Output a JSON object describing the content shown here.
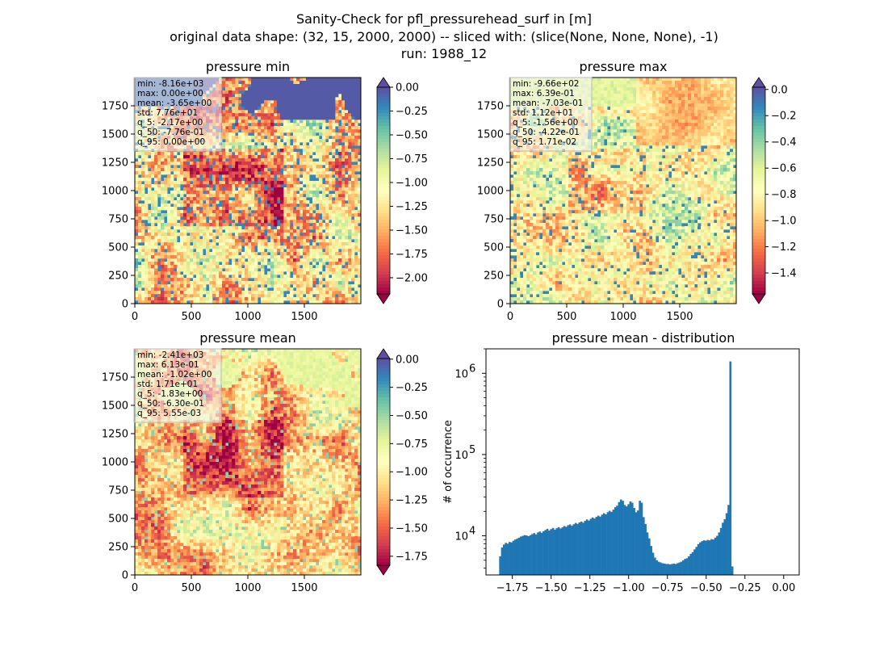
{
  "figure": {
    "title_lines": [
      "Sanity-Check for pfl_pressurehead_surf in [m]",
      "original data shape: (32, 15, 2000, 2000) -- sliced with: (slice(None, None, None), -1)",
      "run: 1988_12"
    ]
  },
  "chart_data": [
    {
      "type": "heatmap",
      "title": "pressure min",
      "xlim": [
        0,
        2000
      ],
      "ylim": [
        0,
        2000
      ],
      "xticks": [
        0,
        500,
        1000,
        1500
      ],
      "yticks": [
        0,
        250,
        500,
        750,
        1000,
        1250,
        1500,
        1750
      ],
      "colormap": "Spectral",
      "colorbar": {
        "range": [
          -2.17,
          0.0
        ],
        "ticks": [
          0.0,
          -0.25,
          -0.5,
          -0.75,
          -1.0,
          -1.25,
          -1.5,
          -1.75,
          -2.0
        ],
        "tick_labels": [
          "0.00",
          "−0.25",
          "−0.50",
          "−0.75",
          "−1.00",
          "−1.25",
          "−1.50",
          "−1.75",
          "−2.00"
        ],
        "extend": "both",
        "extend_top_color": "#5e4fa2",
        "extend_bottom_color": "#9e0142"
      },
      "stats": [
        "min: -8.16e+03",
        "max: 0.00e+00",
        "mean: -3.65e+00",
        "std: 7.76e+01",
        "q_5: -2.17e+00",
        "q_50: -7.76e-01",
        "q_95: 0.00e+00"
      ]
    },
    {
      "type": "heatmap",
      "title": "pressure max",
      "xlim": [
        0,
        2000
      ],
      "ylim": [
        0,
        2000
      ],
      "xticks": [
        0,
        500,
        1000,
        1500
      ],
      "yticks": [
        0,
        250,
        500,
        750,
        1000,
        1250,
        1500,
        1750
      ],
      "colormap": "Spectral",
      "colorbar": {
        "range": [
          -1.56,
          0.0171
        ],
        "ticks": [
          0.0,
          -0.2,
          -0.4,
          -0.6,
          -0.8,
          -1.0,
          -1.2,
          -1.4
        ],
        "tick_labels": [
          "0.0",
          "−0.2",
          "−0.4",
          "−0.6",
          "−0.8",
          "−1.0",
          "−1.2",
          "−1.4"
        ],
        "extend": "both",
        "extend_top_color": "#5e4fa2",
        "extend_bottom_color": "#9e0142"
      },
      "stats": [
        "min: -9.66e+02",
        "max: 6.39e-01",
        "mean: -7.03e-01",
        "std: 1.12e+01",
        "q_5: -1.56e+00",
        "q_50: -4.22e-01",
        "q_95: 1.71e-02"
      ]
    },
    {
      "type": "heatmap",
      "title": "pressure mean",
      "xlim": [
        0,
        2000
      ],
      "ylim": [
        0,
        2000
      ],
      "xticks": [
        0,
        500,
        1000,
        1500
      ],
      "yticks": [
        0,
        250,
        500,
        750,
        1000,
        1250,
        1500,
        1750
      ],
      "colormap": "Spectral",
      "colorbar": {
        "range": [
          -1.83,
          0.00555
        ],
        "ticks": [
          0.0,
          -0.25,
          -0.5,
          -0.75,
          -1.0,
          -1.25,
          -1.5,
          -1.75
        ],
        "tick_labels": [
          "0.00",
          "−0.25",
          "−0.50",
          "−0.75",
          "−1.00",
          "−1.25",
          "−1.50",
          "−1.75"
        ],
        "extend": "both",
        "extend_top_color": "#5e4fa2",
        "extend_bottom_color": "#9e0142"
      },
      "stats": [
        "min: -2.41e+03",
        "max: 6.13e-01",
        "mean: -1.02e+00",
        "std: 1.71e+01",
        "q_5: -1.83e+00",
        "q_50: -6.30e-01",
        "q_95: 5.55e-03"
      ]
    },
    {
      "type": "bar",
      "title": "pressure mean - distribution",
      "xlabel": "",
      "ylabel": "# of occurrence",
      "xlim": [
        -1.92,
        0.1
      ],
      "ylim": [
        3300,
        2000000
      ],
      "yscale": "log",
      "xticks": [
        -1.75,
        -1.5,
        -1.25,
        -1.0,
        -0.75,
        -0.5,
        -0.25,
        0.0
      ],
      "xtick_labels": [
        "−1.75",
        "−1.50",
        "−1.25",
        "−1.00",
        "−0.75",
        "−0.50",
        "−0.25",
        "0.00"
      ],
      "yticks": [
        10000,
        100000,
        1000000
      ],
      "ytick_labels": [
        "10",
        "10",
        "10"
      ],
      "ytick_exponents": [
        "4",
        "5",
        "6"
      ],
      "bar_color": "#1f77b4",
      "bin_start": -1.835,
      "bin_width": 0.01217,
      "values": [
        5600,
        7200,
        7800,
        8200,
        8000,
        8400,
        8300,
        8700,
        9000,
        9200,
        9500,
        9800,
        10000,
        10200,
        10100,
        9900,
        10200,
        10500,
        10800,
        10400,
        11000,
        11300,
        10900,
        11400,
        11800,
        12200,
        11600,
        12100,
        12500,
        11900,
        12400,
        12800,
        12300,
        12700,
        13200,
        12900,
        13500,
        13800,
        13300,
        13900,
        14400,
        14000,
        14600,
        15000,
        14500,
        15300,
        15900,
        15400,
        16200,
        16800,
        16300,
        17100,
        17700,
        17200,
        18200,
        19000,
        18400,
        19500,
        20300,
        19700,
        21000,
        22500,
        23500,
        26000,
        28000,
        27000,
        24000,
        23000,
        24500,
        26500,
        25500,
        22000,
        19500,
        20500,
        27000,
        25500,
        17000,
        14000,
        11000,
        9300,
        7500,
        6200,
        5400,
        5000,
        4800,
        4700,
        4600,
        4550,
        4500,
        4500,
        4450,
        4500,
        4550,
        4500,
        4600,
        4700,
        4800,
        5000,
        5200,
        5300,
        5600,
        6000,
        6300,
        6800,
        7300,
        7900,
        8300,
        8600,
        8800,
        8700,
        8900,
        8800,
        9100,
        9000,
        9500,
        10000,
        11000,
        12500,
        14500,
        16000,
        19000,
        24000,
        1400000,
        4200
      ]
    }
  ]
}
